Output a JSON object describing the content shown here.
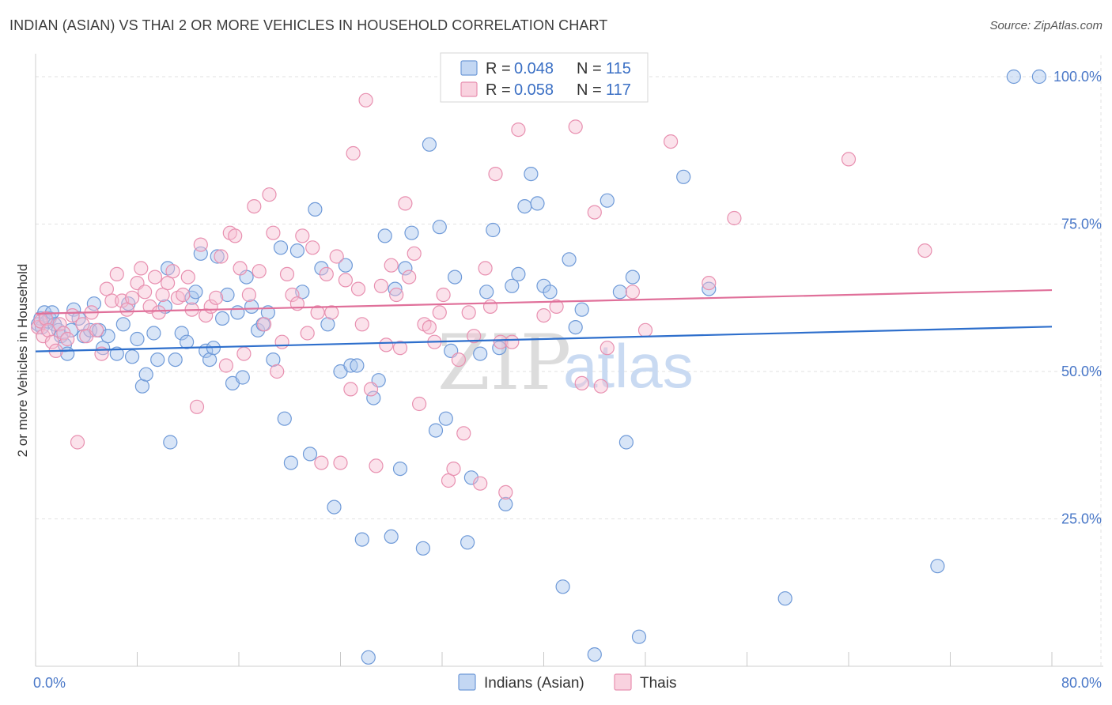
{
  "title": "INDIAN (ASIAN) VS THAI 2 OR MORE VEHICLES IN HOUSEHOLD CORRELATION CHART",
  "source": "Source: ZipAtlas.com",
  "watermark": {
    "zip": "ZIP",
    "atlas": "atlas"
  },
  "colors": {
    "blue_fill": "#a9c6ee",
    "blue_stroke": "#6f9ad8",
    "blue_line": "#2e6fcc",
    "pink_fill": "#f6bfd2",
    "pink_stroke": "#e890b0",
    "pink_line": "#e0709a",
    "grid": "#e2e2e2",
    "axis_text": "#4a78c8"
  },
  "legend": {
    "r_label": "R = ",
    "n_label": "N = ",
    "rows": [
      {
        "series": "Indians (Asian)",
        "r": "0.048",
        "n": "115"
      },
      {
        "series": "Thais",
        "r": "0.058",
        "n": "117"
      }
    ]
  },
  "chart_data": {
    "type": "scatter",
    "title": "INDIAN (ASIAN) VS THAI 2 OR MORE VEHICLES IN HOUSEHOLD CORRELATION CHART",
    "xlabel": "",
    "ylabel": "2 or more Vehicles in Household",
    "xlim": [
      0,
      80
    ],
    "ylim": [
      0,
      102
    ],
    "x_tick_labels": [
      "0.0%",
      "80.0%"
    ],
    "y_tick_labels": [
      {
        "value": 25,
        "label": "25.0%"
      },
      {
        "value": 50,
        "label": "50.0%"
      },
      {
        "value": 75,
        "label": "75.0%"
      },
      {
        "value": 100,
        "label": "100.0%"
      }
    ],
    "grid": true,
    "legend_position": "top-center",
    "series": [
      {
        "name": "Indians (Asian)",
        "trend": {
          "x": [
            0,
            80
          ],
          "y": [
            53.4,
            57.6
          ]
        },
        "points": [
          [
            0.2,
            58
          ],
          [
            0.4,
            59
          ],
          [
            0.5,
            57.5
          ],
          [
            0.7,
            60
          ],
          [
            0.9,
            58.5
          ],
          [
            1.1,
            59
          ],
          [
            1.3,
            60
          ],
          [
            1.5,
            58
          ],
          [
            1.8,
            57
          ],
          [
            2,
            56
          ],
          [
            2.3,
            54.5
          ],
          [
            2.5,
            53
          ],
          [
            2.8,
            57
          ],
          [
            3,
            60.5
          ],
          [
            3.4,
            59
          ],
          [
            3.8,
            56
          ],
          [
            4.3,
            57
          ],
          [
            4.6,
            61.5
          ],
          [
            5,
            57
          ],
          [
            5.3,
            54
          ],
          [
            5.7,
            56
          ],
          [
            6.4,
            53
          ],
          [
            6.9,
            58
          ],
          [
            7.3,
            61.5
          ],
          [
            7.6,
            52.5
          ],
          [
            8,
            55.5
          ],
          [
            8.4,
            47.5
          ],
          [
            8.7,
            49.5
          ],
          [
            9.3,
            56.5
          ],
          [
            9.6,
            52
          ],
          [
            10.2,
            61
          ],
          [
            10.4,
            67.5
          ],
          [
            10.6,
            38
          ],
          [
            11,
            52
          ],
          [
            11.5,
            56.5
          ],
          [
            11.9,
            55
          ],
          [
            12.3,
            62.5
          ],
          [
            12.6,
            63.5
          ],
          [
            13,
            70
          ],
          [
            13.4,
            53.5
          ],
          [
            13.7,
            52
          ],
          [
            14,
            54
          ],
          [
            14.3,
            69.5
          ],
          [
            14.7,
            59
          ],
          [
            15.1,
            63
          ],
          [
            15.5,
            48
          ],
          [
            15.9,
            60
          ],
          [
            16.3,
            49
          ],
          [
            16.6,
            66
          ],
          [
            17,
            61
          ],
          [
            17.5,
            57
          ],
          [
            17.9,
            58
          ],
          [
            18.3,
            60
          ],
          [
            18.7,
            52
          ],
          [
            19.3,
            71
          ],
          [
            19.6,
            42
          ],
          [
            20.1,
            34.5
          ],
          [
            20.6,
            70.5
          ],
          [
            21,
            63.5
          ],
          [
            21.6,
            36
          ],
          [
            22,
            77.5
          ],
          [
            22.5,
            67.5
          ],
          [
            23,
            58
          ],
          [
            23.5,
            27
          ],
          [
            24,
            50
          ],
          [
            24.4,
            68
          ],
          [
            24.8,
            51
          ],
          [
            25.3,
            51
          ],
          [
            25.7,
            21.5
          ],
          [
            26.2,
            1.5
          ],
          [
            26.6,
            45.5
          ],
          [
            27,
            48.5
          ],
          [
            27.5,
            73
          ],
          [
            28,
            22
          ],
          [
            28.3,
            64
          ],
          [
            28.7,
            33.5
          ],
          [
            29.1,
            67.5
          ],
          [
            29.6,
            73.5
          ],
          [
            30.5,
            20
          ],
          [
            31,
            88.5
          ],
          [
            31.5,
            40
          ],
          [
            31.8,
            74.5
          ],
          [
            32.3,
            42
          ],
          [
            32.7,
            53.5
          ],
          [
            33,
            66
          ],
          [
            34,
            21
          ],
          [
            34.3,
            32
          ],
          [
            35,
            53
          ],
          [
            35.5,
            63.5
          ],
          [
            36,
            74
          ],
          [
            36.5,
            54
          ],
          [
            37,
            27.5
          ],
          [
            37.5,
            64.5
          ],
          [
            38,
            66.5
          ],
          [
            38.5,
            78
          ],
          [
            39,
            83.5
          ],
          [
            39.5,
            78.5
          ],
          [
            40,
            64.5
          ],
          [
            40.5,
            63.5
          ],
          [
            41.5,
            13.5
          ],
          [
            42,
            69
          ],
          [
            42.5,
            57.5
          ],
          [
            43,
            60.5
          ],
          [
            44,
            2
          ],
          [
            45,
            79
          ],
          [
            46,
            63.5
          ],
          [
            46.5,
            38
          ],
          [
            47,
            66
          ],
          [
            47.5,
            5
          ],
          [
            51,
            83
          ],
          [
            53,
            64
          ],
          [
            59,
            11.5
          ],
          [
            71,
            17
          ],
          [
            77,
            100
          ],
          [
            79,
            100
          ]
        ]
      },
      {
        "name": "Thais",
        "trend": {
          "x": [
            0,
            80
          ],
          "y": [
            59.8,
            63.8
          ]
        },
        "points": [
          [
            0.2,
            57.5
          ],
          [
            0.4,
            58.5
          ],
          [
            0.6,
            56
          ],
          [
            0.8,
            59
          ],
          [
            1,
            57
          ],
          [
            1.3,
            55
          ],
          [
            1.6,
            53.5
          ],
          [
            1.9,
            58
          ],
          [
            2.2,
            56.5
          ],
          [
            2.5,
            55.5
          ],
          [
            2.9,
            59.5
          ],
          [
            3.3,
            38
          ],
          [
            3.7,
            58
          ],
          [
            4,
            56
          ],
          [
            4.4,
            60
          ],
          [
            4.8,
            57
          ],
          [
            5.2,
            53
          ],
          [
            5.6,
            64
          ],
          [
            6,
            62
          ],
          [
            6.4,
            66.5
          ],
          [
            6.8,
            62
          ],
          [
            7.2,
            60.5
          ],
          [
            7.6,
            62.5
          ],
          [
            8,
            65
          ],
          [
            8.3,
            67.5
          ],
          [
            8.6,
            63.5
          ],
          [
            9,
            61
          ],
          [
            9.4,
            66
          ],
          [
            9.7,
            60
          ],
          [
            10,
            63
          ],
          [
            10.4,
            65
          ],
          [
            10.8,
            67
          ],
          [
            11.2,
            62.5
          ],
          [
            11.6,
            63
          ],
          [
            12,
            66
          ],
          [
            12.3,
            60.5
          ],
          [
            12.7,
            44
          ],
          [
            13,
            71.5
          ],
          [
            13.4,
            59.5
          ],
          [
            13.8,
            61
          ],
          [
            14.2,
            62.5
          ],
          [
            14.6,
            69.5
          ],
          [
            15,
            51
          ],
          [
            15.3,
            73.5
          ],
          [
            15.7,
            73
          ],
          [
            16.1,
            67.5
          ],
          [
            16.4,
            53
          ],
          [
            16.8,
            63
          ],
          [
            17.2,
            78
          ],
          [
            17.6,
            67
          ],
          [
            18,
            58
          ],
          [
            18.4,
            80
          ],
          [
            18.7,
            73.5
          ],
          [
            19,
            50
          ],
          [
            19.4,
            55
          ],
          [
            19.8,
            66.5
          ],
          [
            20.2,
            63
          ],
          [
            20.6,
            61.5
          ],
          [
            21,
            73
          ],
          [
            21.4,
            56.5
          ],
          [
            21.8,
            71
          ],
          [
            22.2,
            60
          ],
          [
            22.5,
            34.5
          ],
          [
            22.9,
            66.5
          ],
          [
            23.3,
            60
          ],
          [
            23.7,
            69.5
          ],
          [
            24,
            34.5
          ],
          [
            24.4,
            65.5
          ],
          [
            24.8,
            47
          ],
          [
            25,
            87
          ],
          [
            25.4,
            64
          ],
          [
            25.7,
            58
          ],
          [
            26,
            96
          ],
          [
            26.4,
            47
          ],
          [
            26.8,
            34
          ],
          [
            27.2,
            64.5
          ],
          [
            27.6,
            54.5
          ],
          [
            28,
            68
          ],
          [
            28.4,
            63
          ],
          [
            28.7,
            54
          ],
          [
            29.1,
            78.5
          ],
          [
            29.4,
            66
          ],
          [
            29.8,
            70
          ],
          [
            30.2,
            44.5
          ],
          [
            30.6,
            58
          ],
          [
            31,
            57.5
          ],
          [
            31.4,
            55
          ],
          [
            31.8,
            60
          ],
          [
            32.1,
            63
          ],
          [
            32.5,
            31.5
          ],
          [
            32.9,
            33.5
          ],
          [
            33.3,
            52
          ],
          [
            33.7,
            39.5
          ],
          [
            34.1,
            60
          ],
          [
            34.5,
            56
          ],
          [
            35,
            31
          ],
          [
            35.4,
            67.5
          ],
          [
            35.8,
            61
          ],
          [
            36.2,
            83.5
          ],
          [
            36.6,
            55
          ],
          [
            37,
            29.5
          ],
          [
            37.5,
            55
          ],
          [
            38,
            91
          ],
          [
            40,
            59.5
          ],
          [
            41,
            61
          ],
          [
            43,
            48
          ],
          [
            44,
            77
          ],
          [
            45,
            54
          ],
          [
            47,
            63.5
          ],
          [
            48,
            57
          ],
          [
            50,
            89
          ],
          [
            53,
            65
          ],
          [
            55,
            76
          ],
          [
            64,
            86
          ],
          [
            70,
            70.5
          ],
          [
            44.5,
            47.5
          ],
          [
            42.5,
            91.5
          ]
        ]
      }
    ]
  },
  "bottom_legend": [
    {
      "label": "Indians (Asian)"
    },
    {
      "label": "Thais"
    }
  ]
}
